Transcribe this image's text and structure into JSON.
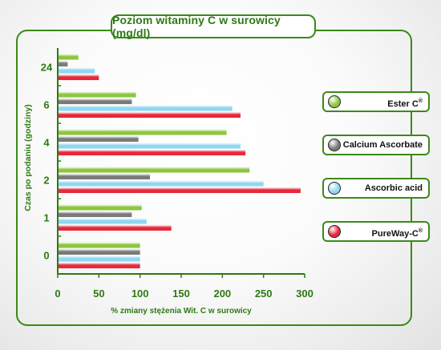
{
  "chart_data": {
    "type": "bar",
    "orientation": "horizontal",
    "title": "Poziom witaminy C w surowicy (mg/dl)",
    "xlabel": "% zmiany stężenia Wit. C w surowicy",
    "ylabel": "Czas po podaniu (godziny)",
    "categories": [
      "24",
      "6",
      "4",
      "2",
      "1",
      "0"
    ],
    "xlim": [
      0,
      300
    ],
    "xticks": [
      "0",
      "50",
      "100",
      "150",
      "200",
      "250",
      "300"
    ],
    "series": [
      {
        "name": "Ester C",
        "superscript": "®",
        "color": "#8cc63f",
        "values": [
          25,
          95,
          205,
          233,
          102,
          100
        ]
      },
      {
        "name": "Calcium Ascorbate",
        "superscript": "",
        "color": "#7a7a7a",
        "values": [
          12,
          90,
          98,
          112,
          90,
          100
        ]
      },
      {
        "name": "Ascorbic acid",
        "superscript": "",
        "color": "#8fd7f0",
        "values": [
          45,
          212,
          222,
          250,
          108,
          100
        ]
      },
      {
        "name": "PureWay-C",
        "superscript": "®",
        "color": "#e8283b",
        "values": [
          50,
          222,
          228,
          295,
          138,
          100
        ]
      }
    ]
  }
}
